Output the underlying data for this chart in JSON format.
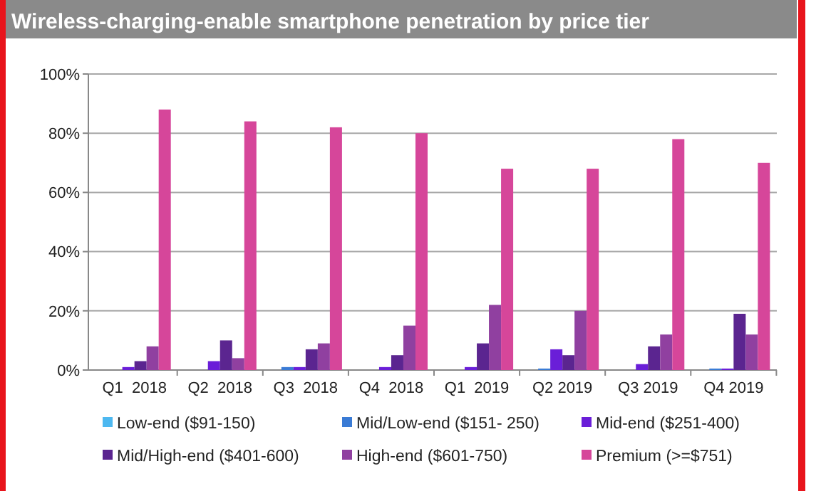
{
  "chart_data": {
    "type": "bar",
    "title": "Wireless-charging-enable smartphone penetration by price tier",
    "categories": [
      "Q1  2018",
      "Q2  2018",
      "Q3  2018",
      "Q4  2018",
      "Q1  2019",
      "Q2 2019",
      "Q3 2019",
      "Q4 2019"
    ],
    "series": [
      {
        "name": "Low-end ($91-150)",
        "color": "#4db8f0",
        "values": [
          0,
          0,
          0,
          0,
          0,
          0,
          0,
          0
        ]
      },
      {
        "name": "Mid/Low-end ($151- 250)",
        "color": "#3a7bd5",
        "values": [
          0,
          0,
          1,
          0,
          0,
          0.5,
          0,
          0.5
        ]
      },
      {
        "name": "Mid-end ($251-400)",
        "color": "#6a1ed8",
        "values": [
          1,
          3,
          1,
          1,
          1,
          7,
          2,
          0.5
        ]
      },
      {
        "name": "Mid/High-end ($401-600)",
        "color": "#5b2590",
        "values": [
          3,
          10,
          7,
          5,
          9,
          5,
          8,
          19
        ]
      },
      {
        "name": "High-end ($601-750)",
        "color": "#9040a0",
        "values": [
          8,
          4,
          9,
          15,
          22,
          20,
          12,
          12
        ]
      },
      {
        "name": "Premium (>=$751)",
        "color": "#d6469a",
        "values": [
          88,
          84,
          82,
          80,
          68,
          68,
          78,
          70
        ]
      }
    ],
    "ylim": [
      0,
      100
    ],
    "yticks": [
      {
        "value": 0,
        "label": "0%"
      },
      {
        "value": 20,
        "label": "20%"
      },
      {
        "value": 40,
        "label": "40%"
      },
      {
        "value": 60,
        "label": "60%"
      },
      {
        "value": 80,
        "label": "80%"
      },
      {
        "value": 100,
        "label": "100%"
      }
    ],
    "grid": "y",
    "legend": "bottom"
  }
}
